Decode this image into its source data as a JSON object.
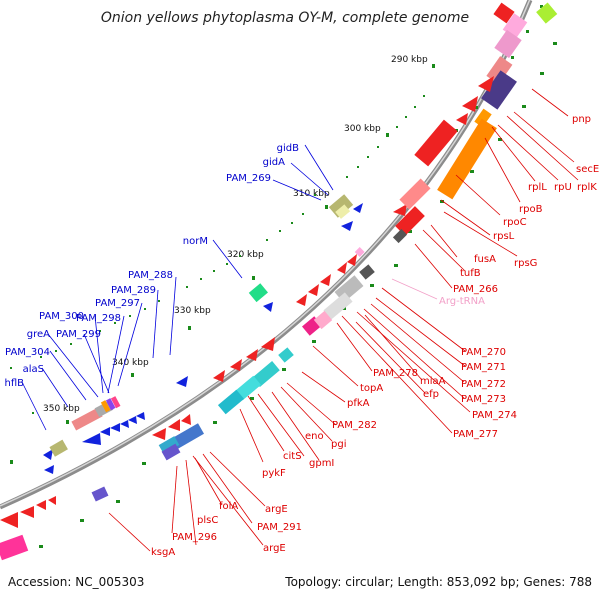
{
  "title": "Onion yellows phytoplasma OY-M, complete genome",
  "footer": {
    "accession": "Accession: NC_005303",
    "summary": "Topology: circular; Length: 853,092 bp; Genes: 788"
  },
  "kbp_ticks": [
    "290 kbp",
    "300 kbp",
    "310 kbp",
    "320 kbp",
    "330 kbp",
    "340 kbp",
    "350 kbp"
  ],
  "colors": {
    "forward_label": "#0000cc",
    "reverse_label": "#dd0000",
    "trna_label": "#f2a0c8",
    "backbone": "#8c8c8c",
    "tick": "#1a8a1a"
  },
  "labels_forward": [
    "gidB",
    "gidA",
    "PAM_269",
    "norM",
    "PAM_288",
    "PAM_289",
    "PAM_297",
    "PAM_298",
    "PAM_300",
    "PAM_299",
    "greA",
    "PAM_304",
    "alaS",
    "hflB"
  ],
  "labels_reverse": [
    "pnp",
    "secE",
    "rplK",
    "rpU",
    "rplL",
    "rpoB",
    "rpoC",
    "rpsL",
    "rpsG",
    "fusA",
    "tufB",
    "PAM_266",
    "PAM_270",
    "PAM_271",
    "PAM_272",
    "PAM_273",
    "PAM_274",
    "PAM_277",
    "miaA",
    "efp",
    "PAM_278",
    "topA",
    "pfkA",
    "PAM_282",
    "pgi",
    "eno",
    "gpmI",
    "citS",
    "pykF",
    "argE",
    "PAM_291",
    "argE",
    "folA",
    "plsC",
    "PAM_296",
    "ksgA"
  ],
  "labels_trna": [
    "Arg-tRNA"
  ]
}
